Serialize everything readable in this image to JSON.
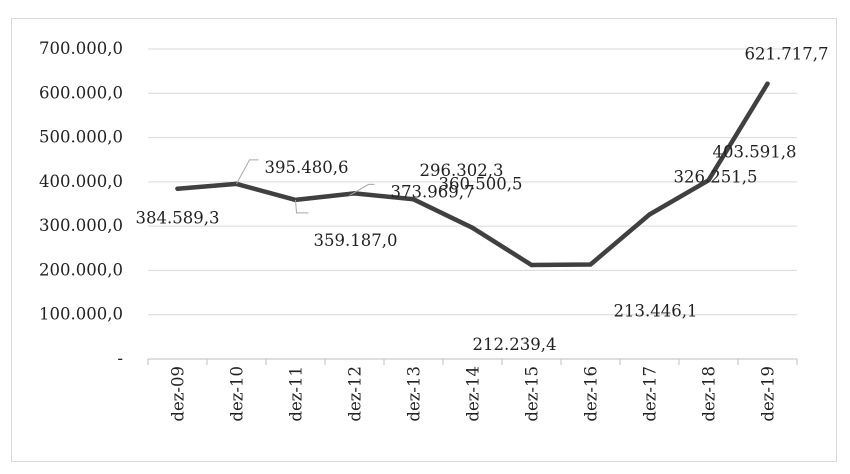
{
  "chart_data": {
    "type": "line",
    "title": "",
    "xlabel": "",
    "ylabel": "",
    "categories": [
      "dez-09",
      "dez-10",
      "dez-11",
      "dez-12",
      "dez-13",
      "dez-14",
      "dez-15",
      "dez-16",
      "dez-17",
      "dez-18",
      "dez-19"
    ],
    "series": [
      {
        "values": [
          384589.3,
          395480.6,
          359187.0,
          373969.7,
          360500.5,
          296302.3,
          212239.4,
          213446.1,
          326251.5,
          403591.8,
          621717.7
        ]
      }
    ],
    "data_labels": [
      "384.589,3",
      "395.480,6",
      "359.187,0",
      "373.969,7",
      "360.500,5",
      "296.302,3",
      "212.239,4",
      "213.446,1",
      "326.251,5",
      "403.591,8",
      "621.717,7"
    ],
    "y_ticks": [
      {
        "value": 0,
        "label": "-"
      },
      {
        "value": 100000,
        "label": "100.000,0"
      },
      {
        "value": 200000,
        "label": "200.000,0"
      },
      {
        "value": 300000,
        "label": "300.000,0"
      },
      {
        "value": 400000,
        "label": "400.000,0"
      },
      {
        "value": 500000,
        "label": "500.000,0"
      },
      {
        "value": 600000,
        "label": "600.000,0"
      },
      {
        "value": 700000,
        "label": "700.000,0"
      }
    ],
    "ylim": [
      0,
      700000
    ],
    "grid": true,
    "legend": "none",
    "colors": {
      "line": "#404040",
      "grid": "#d9d9d9",
      "axis": "#bfbfbf",
      "leader": "#a6a6a6"
    }
  }
}
